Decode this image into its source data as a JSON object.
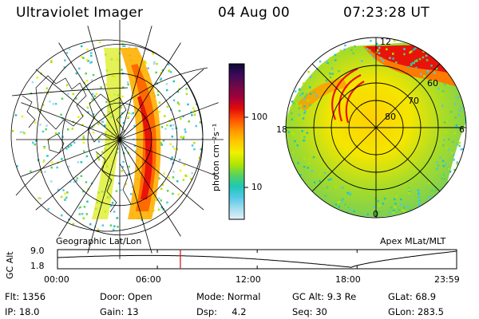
{
  "header": {
    "title": "Ultraviolet Imager",
    "date": "04 Aug 00",
    "time": "07:23:28 UT"
  },
  "colorbar": {
    "unit_label": "photon cm⁻²s⁻¹",
    "ticks": [
      {
        "label": "100",
        "value": 100
      },
      {
        "label": "10",
        "value": 10
      }
    ],
    "colors": [
      "#0a0a32",
      "#3c0a5a",
      "#6e0a46",
      "#a0003c",
      "#e10a0a",
      "#ff5000",
      "#ff9600",
      "#ffc800",
      "#f0f000",
      "#b4e600",
      "#5ad25a",
      "#1ec8b4",
      "#50c8e6",
      "#a0dcf0",
      "#e6f0f5"
    ]
  },
  "left_panel": {
    "label": "Geographic Lat/Lon"
  },
  "right_panel": {
    "label": "Apex MLat/MLT",
    "mlat_labels": [
      "80",
      "70",
      "60"
    ],
    "mlt_labels": {
      "top": "12",
      "left": "18",
      "right": "6",
      "bottom": "0"
    }
  },
  "timeline": {
    "axis_label": "GC Alt",
    "y_ticks": [
      "9.0",
      "1.8"
    ],
    "x_ticks": [
      "00:00",
      "06:00",
      "12:00",
      "18:00",
      "23:59"
    ],
    "marker_time": "07:23",
    "marker_color": "#d02020"
  },
  "footer": {
    "row1": {
      "flt": "Flt: 1356",
      "door": "Door: Open",
      "mode": "Mode: Normal",
      "gcalt": "GC Alt: 9.3 Re",
      "glat": "GLat:  68.9"
    },
    "row2": {
      "ip": "IP: 18.0",
      "gain": "Gain: 13",
      "dsp": "Dsp:     4.2",
      "seq": "Seq: 30",
      "glon": "GLon: 283.5"
    }
  }
}
